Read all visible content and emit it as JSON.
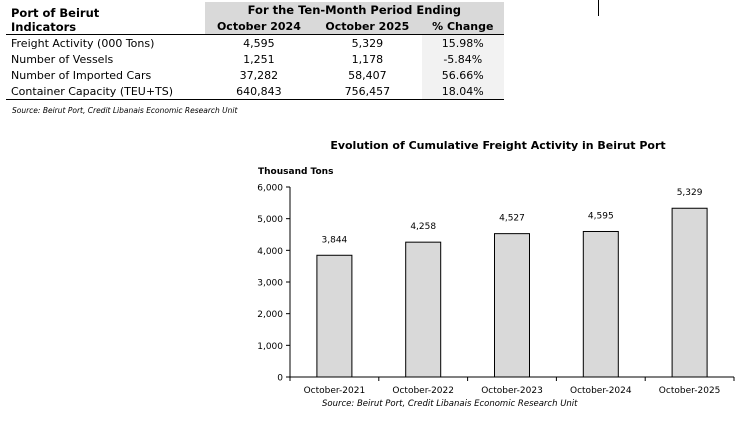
{
  "table": {
    "corner_line1": "Port of Beirut",
    "corner_line2": "Indicators",
    "period_header": "For the Ten-Month Period Ending",
    "columns": [
      "October 2024",
      "October 2025",
      "% Change"
    ],
    "rows": [
      {
        "label": "Freight Activity (000 Tons)",
        "v2024": "4,595",
        "v2025": "5,329",
        "change": "15.98%"
      },
      {
        "label": "Number of Vessels",
        "v2024": "1,251",
        "v2025": "1,178",
        "change": "-5.84%"
      },
      {
        "label": "Number of Imported Cars",
        "v2024": "37,282",
        "v2025": "58,407",
        "change": "56.66%"
      },
      {
        "label": "Container Capacity (TEU+TS)",
        "v2024": "640,843",
        "v2025": "756,457",
        "change": "18.04%"
      }
    ],
    "source": "Source: Beirut Port, Credit Libanais Economic Research Unit"
  },
  "chart_data": {
    "type": "bar",
    "title": "Evolution of Cumulative Freight Activity in Beirut Port",
    "ylabel": "Thousand Tons",
    "xlabel": "",
    "categories": [
      "October-2021",
      "October-2022",
      "October-2023",
      "October-2024",
      "October-2025"
    ],
    "values": [
      3844,
      4258,
      4527,
      4595,
      5329
    ],
    "data_labels": [
      "3,844",
      "4,258",
      "4,527",
      "4,595",
      "5,329"
    ],
    "ylim": [
      0,
      6000
    ],
    "yticks": [
      0,
      1000,
      2000,
      3000,
      4000,
      5000,
      6000
    ],
    "ytick_labels": [
      "0",
      "1,000",
      "2,000",
      "3,000",
      "4,000",
      "5,000",
      "6,000"
    ],
    "grid": false,
    "legend": "none",
    "bar_color": "#d9d9d9",
    "source": "Source: Beirut Port, Credit Libanais Economic Research Unit"
  }
}
